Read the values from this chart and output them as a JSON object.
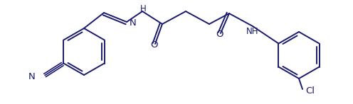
{
  "bg_color": "#ffffff",
  "line_color": "#1a1a6e",
  "line_width": 1.4,
  "font_size": 8.5,
  "figsize": [
    4.96,
    1.47
  ],
  "dpi": 100,
  "xlim": [
    0,
    496
  ],
  "ylim": [
    0,
    147
  ]
}
